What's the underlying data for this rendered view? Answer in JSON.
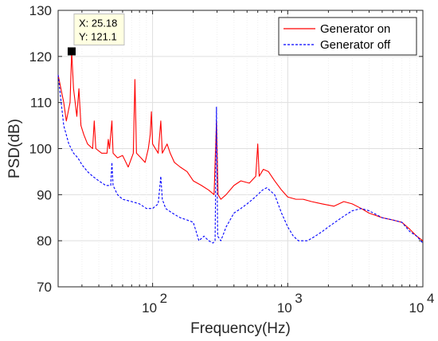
{
  "chart_data": {
    "type": "line",
    "xscale": "log",
    "xlabel": "Frequency(Hz)",
    "ylabel": "PSD(dB)",
    "xlim": [
      20,
      10000
    ],
    "ylim": [
      70,
      130
    ],
    "yticks": [
      70,
      80,
      90,
      100,
      110,
      120,
      130
    ],
    "xticks": [
      {
        "value": 100,
        "base": "10",
        "exp": "2"
      },
      {
        "value": 1000,
        "base": "10",
        "exp": "3"
      },
      {
        "value": 10000,
        "base": "10",
        "exp": "4"
      }
    ],
    "grid": true,
    "legend_position": "top-right",
    "series": [
      {
        "name": "Generator on",
        "color": "#ff0000",
        "line_style": "solid",
        "points": [
          [
            20,
            116
          ],
          [
            22,
            110
          ],
          [
            23,
            106
          ],
          [
            24.5,
            110
          ],
          [
            25.18,
            121.1
          ],
          [
            26,
            113
          ],
          [
            27.5,
            107
          ],
          [
            28.5,
            113
          ],
          [
            29.5,
            105
          ],
          [
            31,
            103
          ],
          [
            33,
            101
          ],
          [
            36,
            100
          ],
          [
            37,
            106
          ],
          [
            38,
            100
          ],
          [
            42,
            99
          ],
          [
            46,
            99
          ],
          [
            47,
            102
          ],
          [
            48,
            100
          ],
          [
            50,
            106
          ],
          [
            51,
            99
          ],
          [
            55,
            98
          ],
          [
            60,
            98.5
          ],
          [
            66,
            96
          ],
          [
            72,
            99
          ],
          [
            74,
            115
          ],
          [
            76,
            99
          ],
          [
            82,
            98
          ],
          [
            88,
            97
          ],
          [
            93,
            100
          ],
          [
            96,
            103
          ],
          [
            98,
            108
          ],
          [
            100,
            101
          ],
          [
            110,
            99
          ],
          [
            115,
            106
          ],
          [
            118,
            99
          ],
          [
            123,
            100
          ],
          [
            128,
            101
          ],
          [
            135,
            99
          ],
          [
            145,
            97
          ],
          [
            160,
            96
          ],
          [
            180,
            95
          ],
          [
            200,
            93
          ],
          [
            230,
            92
          ],
          [
            260,
            91
          ],
          [
            285,
            90
          ],
          [
            297,
            106
          ],
          [
            305,
            90
          ],
          [
            320,
            89
          ],
          [
            350,
            90
          ],
          [
            400,
            92
          ],
          [
            450,
            93
          ],
          [
            520,
            92.5
          ],
          [
            580,
            94
          ],
          [
            600,
            101
          ],
          [
            615,
            94
          ],
          [
            660,
            95.5
          ],
          [
            720,
            95
          ],
          [
            800,
            93
          ],
          [
            900,
            91
          ],
          [
            1000,
            89.5
          ],
          [
            1150,
            89
          ],
          [
            1300,
            89
          ],
          [
            1500,
            88.5
          ],
          [
            1800,
            88
          ],
          [
            2200,
            87.5
          ],
          [
            2600,
            88.5
          ],
          [
            3000,
            88
          ],
          [
            3500,
            87
          ],
          [
            4000,
            86
          ],
          [
            5000,
            85
          ],
          [
            6000,
            84.5
          ],
          [
            7000,
            84
          ],
          [
            8000,
            82.5
          ],
          [
            9000,
            81
          ],
          [
            10000,
            80
          ]
        ]
      },
      {
        "name": "Generator off",
        "color": "#0000ff",
        "line_style": "dashed",
        "points": [
          [
            20,
            116
          ],
          [
            22,
            105
          ],
          [
            24,
            101
          ],
          [
            26,
            99
          ],
          [
            28,
            98
          ],
          [
            30,
            96.5
          ],
          [
            33,
            95
          ],
          [
            36,
            94
          ],
          [
            40,
            93
          ],
          [
            45,
            92
          ],
          [
            49,
            92
          ],
          [
            50,
            97
          ],
          [
            51,
            92
          ],
          [
            55,
            90
          ],
          [
            60,
            89
          ],
          [
            70,
            88.5
          ],
          [
            80,
            88
          ],
          [
            90,
            87
          ],
          [
            100,
            87
          ],
          [
            110,
            88
          ],
          [
            115,
            94
          ],
          [
            118,
            89
          ],
          [
            125,
            87
          ],
          [
            140,
            86
          ],
          [
            160,
            85
          ],
          [
            180,
            84.5
          ],
          [
            200,
            84
          ],
          [
            210,
            82
          ],
          [
            220,
            80
          ],
          [
            240,
            81
          ],
          [
            260,
            80
          ],
          [
            280,
            79.5
          ],
          [
            290,
            80
          ],
          [
            297,
            109
          ],
          [
            303,
            81
          ],
          [
            320,
            80
          ],
          [
            350,
            83
          ],
          [
            400,
            86
          ],
          [
            450,
            87
          ],
          [
            500,
            88
          ],
          [
            550,
            89
          ],
          [
            600,
            90
          ],
          [
            650,
            91
          ],
          [
            700,
            91.5
          ],
          [
            800,
            90
          ],
          [
            900,
            86
          ],
          [
            1000,
            83
          ],
          [
            1100,
            81
          ],
          [
            1200,
            80
          ],
          [
            1400,
            80
          ],
          [
            1600,
            81
          ],
          [
            1800,
            82
          ],
          [
            2000,
            83
          ],
          [
            2500,
            85
          ],
          [
            3000,
            86.5
          ],
          [
            3500,
            87
          ],
          [
            4000,
            86.5
          ],
          [
            5000,
            85
          ],
          [
            6000,
            84.5
          ],
          [
            7000,
            84
          ],
          [
            8000,
            82
          ],
          [
            9000,
            81
          ],
          [
            10000,
            79.5
          ]
        ]
      }
    ],
    "annotation": {
      "x_label": "X: 25.18",
      "y_label": "Y: 121.1",
      "x": 25.18,
      "y": 121.1
    }
  }
}
